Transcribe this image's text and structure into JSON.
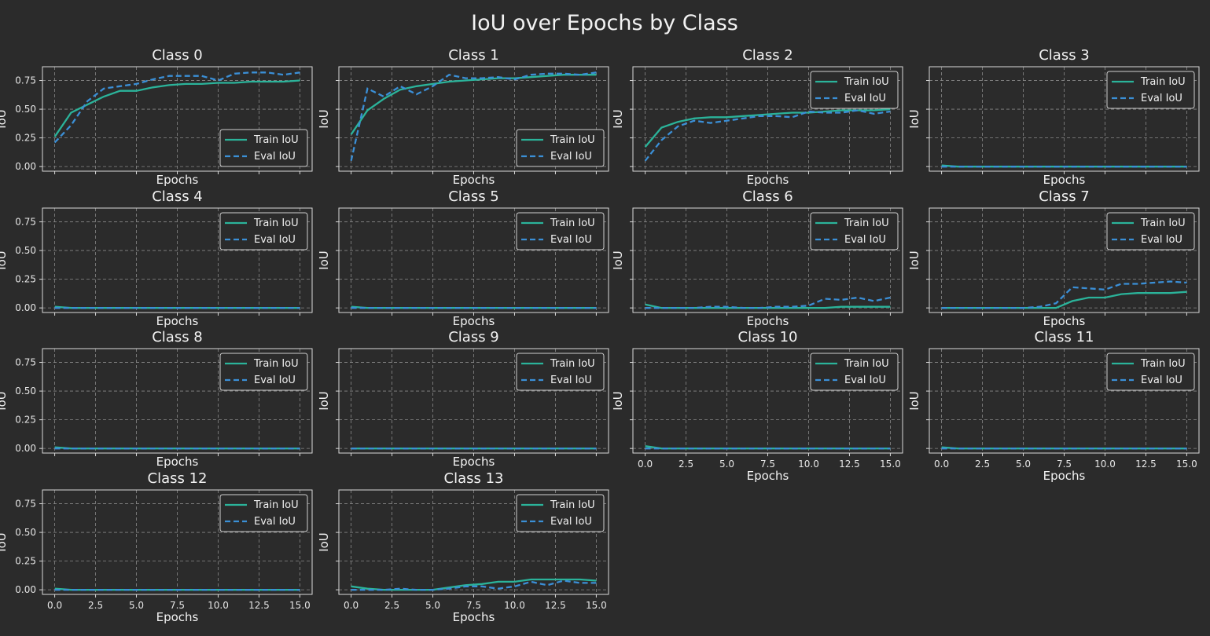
{
  "figure": {
    "title": "IoU over Epochs by Class",
    "background": "#2b2b2b",
    "train_color": "#2bb39a",
    "eval_color": "#3b8fd6",
    "axis_color": "#d9d9d9",
    "grid_color": "#8a8a8a"
  },
  "chart_data": {
    "type": "line",
    "xlabel": "Epochs",
    "ylabel": "IoU",
    "xlim": [
      -0.75,
      15.75
    ],
    "ylim": [
      -0.04,
      0.87
    ],
    "x_ticks": [
      0,
      2.5,
      5,
      7.5,
      10,
      12.5,
      15
    ],
    "x_tick_labels": [
      "0.0",
      "2.5",
      "5.0",
      "7.5",
      "10.0",
      "12.5",
      "15.0"
    ],
    "y_ticks": [
      0,
      0.25,
      0.5,
      0.75
    ],
    "y_tick_labels": [
      "0.00",
      "0.25",
      "0.50",
      "0.75"
    ],
    "grid": true,
    "x": [
      0,
      1,
      2,
      3,
      4,
      5,
      6,
      7,
      8,
      9,
      10,
      11,
      12,
      13,
      14,
      15
    ],
    "series_names": [
      "Train IoU",
      "Eval IoU"
    ],
    "panels": [
      {
        "title": "Class 0",
        "legend": "lower-right",
        "series": [
          {
            "name": "Train IoU",
            "values": [
              0.26,
              0.47,
              0.54,
              0.61,
              0.66,
              0.66,
              0.69,
              0.71,
              0.72,
              0.72,
              0.73,
              0.73,
              0.74,
              0.74,
              0.74,
              0.75
            ]
          },
          {
            "name": "Eval IoU",
            "values": [
              0.21,
              0.36,
              0.57,
              0.68,
              0.7,
              0.72,
              0.76,
              0.79,
              0.79,
              0.79,
              0.75,
              0.81,
              0.82,
              0.82,
              0.8,
              0.82
            ]
          }
        ]
      },
      {
        "title": "Class 1",
        "legend": "lower-right",
        "series": [
          {
            "name": "Train IoU",
            "values": [
              0.28,
              0.49,
              0.59,
              0.67,
              0.7,
              0.72,
              0.74,
              0.75,
              0.76,
              0.77,
              0.77,
              0.78,
              0.79,
              0.8,
              0.8,
              0.8
            ]
          },
          {
            "name": "Eval IoU",
            "values": [
              0.05,
              0.68,
              0.61,
              0.7,
              0.63,
              0.7,
              0.8,
              0.77,
              0.77,
              0.78,
              0.76,
              0.8,
              0.81,
              0.81,
              0.8,
              0.82
            ]
          }
        ]
      },
      {
        "title": "Class 2",
        "legend": "upper-right",
        "series": [
          {
            "name": "Train IoU",
            "values": [
              0.17,
              0.34,
              0.39,
              0.42,
              0.43,
              0.43,
              0.44,
              0.45,
              0.46,
              0.47,
              0.47,
              0.48,
              0.49,
              0.49,
              0.49,
              0.5
            ]
          },
          {
            "name": "Eval IoU",
            "values": [
              0.05,
              0.23,
              0.35,
              0.4,
              0.38,
              0.4,
              0.42,
              0.44,
              0.44,
              0.43,
              0.48,
              0.47,
              0.47,
              0.49,
              0.46,
              0.48
            ]
          }
        ]
      },
      {
        "title": "Class 3",
        "legend": "upper-right",
        "series": [
          {
            "name": "Train IoU",
            "values": [
              0.01,
              0.0,
              0.0,
              0.0,
              0.0,
              0.0,
              0.0,
              0.0,
              0.0,
              0.0,
              0.0,
              0.0,
              0.0,
              0.0,
              0.0,
              0.0
            ]
          },
          {
            "name": "Eval IoU",
            "values": [
              0.0,
              0.0,
              0.0,
              0.0,
              0.0,
              0.0,
              0.0,
              0.0,
              0.0,
              0.0,
              0.0,
              0.0,
              0.0,
              0.0,
              0.0,
              0.0
            ]
          }
        ]
      },
      {
        "title": "Class 4",
        "legend": "upper-right",
        "series": [
          {
            "name": "Train IoU",
            "values": [
              0.01,
              0.0,
              0.0,
              0.0,
              0.0,
              0.0,
              0.0,
              0.0,
              0.0,
              0.0,
              0.0,
              0.0,
              0.0,
              0.0,
              0.0,
              0.0
            ]
          },
          {
            "name": "Eval IoU",
            "values": [
              0.0,
              0.0,
              0.0,
              0.0,
              0.0,
              0.0,
              0.0,
              0.0,
              0.0,
              0.0,
              0.0,
              0.0,
              0.0,
              0.0,
              0.0,
              0.0
            ]
          }
        ]
      },
      {
        "title": "Class 5",
        "legend": "upper-right",
        "series": [
          {
            "name": "Train IoU",
            "values": [
              0.01,
              0.0,
              0.0,
              0.0,
              0.0,
              0.0,
              0.0,
              0.0,
              0.0,
              0.0,
              0.0,
              0.0,
              0.0,
              0.0,
              0.0,
              0.0
            ]
          },
          {
            "name": "Eval IoU",
            "values": [
              0.0,
              0.0,
              0.0,
              0.0,
              0.0,
              0.0,
              0.0,
              0.0,
              0.0,
              0.0,
              0.0,
              0.0,
              0.0,
              0.0,
              0.0,
              0.0
            ]
          }
        ]
      },
      {
        "title": "Class 6",
        "legend": "upper-right",
        "series": [
          {
            "name": "Train IoU",
            "values": [
              0.03,
              0.0,
              0.0,
              0.0,
              0.0,
              0.0,
              0.0,
              0.0,
              0.0,
              0.0,
              0.0,
              0.0,
              0.01,
              0.01,
              0.01,
              0.01
            ]
          },
          {
            "name": "Eval IoU",
            "values": [
              0.0,
              0.0,
              0.0,
              0.0,
              0.01,
              0.01,
              0.0,
              0.0,
              0.01,
              0.01,
              0.02,
              0.08,
              0.07,
              0.09,
              0.06,
              0.09
            ]
          }
        ]
      },
      {
        "title": "Class 7",
        "legend": "upper-right",
        "series": [
          {
            "name": "Train IoU",
            "values": [
              0.0,
              0.0,
              0.0,
              0.0,
              0.0,
              0.0,
              0.0,
              0.0,
              0.06,
              0.09,
              0.09,
              0.12,
              0.13,
              0.13,
              0.13,
              0.14
            ]
          },
          {
            "name": "Eval IoU",
            "values": [
              0.0,
              0.0,
              0.0,
              0.0,
              0.0,
              0.0,
              0.01,
              0.04,
              0.18,
              0.17,
              0.16,
              0.21,
              0.21,
              0.22,
              0.23,
              0.22
            ]
          }
        ]
      },
      {
        "title": "Class 8",
        "legend": "upper-right",
        "series": [
          {
            "name": "Train IoU",
            "values": [
              0.01,
              0.0,
              0.0,
              0.0,
              0.0,
              0.0,
              0.0,
              0.0,
              0.0,
              0.0,
              0.0,
              0.0,
              0.0,
              0.0,
              0.0,
              0.0
            ]
          },
          {
            "name": "Eval IoU",
            "values": [
              0.0,
              0.0,
              0.0,
              0.0,
              0.0,
              0.0,
              0.0,
              0.0,
              0.0,
              0.0,
              0.0,
              0.0,
              0.0,
              0.0,
              0.0,
              0.0
            ]
          }
        ]
      },
      {
        "title": "Class 9",
        "legend": "upper-right",
        "series": [
          {
            "name": "Train IoU",
            "values": [
              0.0,
              0.0,
              0.0,
              0.0,
              0.0,
              0.0,
              0.0,
              0.0,
              0.0,
              0.0,
              0.0,
              0.0,
              0.0,
              0.0,
              0.0,
              0.0
            ]
          },
          {
            "name": "Eval IoU",
            "values": [
              0.0,
              0.0,
              0.0,
              0.0,
              0.0,
              0.0,
              0.0,
              0.0,
              0.0,
              0.0,
              0.0,
              0.0,
              0.0,
              0.0,
              0.0,
              0.0
            ]
          }
        ]
      },
      {
        "title": "Class 10",
        "legend": "upper-right",
        "series": [
          {
            "name": "Train IoU",
            "values": [
              0.02,
              0.0,
              0.0,
              0.0,
              0.0,
              0.0,
              0.0,
              0.0,
              0.0,
              0.0,
              0.0,
              0.0,
              0.0,
              0.0,
              0.0,
              0.0
            ]
          },
          {
            "name": "Eval IoU",
            "values": [
              0.0,
              0.0,
              0.0,
              0.0,
              0.0,
              0.0,
              0.0,
              0.0,
              0.0,
              0.0,
              0.0,
              0.0,
              0.0,
              0.0,
              0.0,
              0.0
            ]
          }
        ]
      },
      {
        "title": "Class 11",
        "legend": "upper-right",
        "series": [
          {
            "name": "Train IoU",
            "values": [
              0.01,
              0.0,
              0.0,
              0.0,
              0.0,
              0.0,
              0.0,
              0.0,
              0.0,
              0.0,
              0.0,
              0.0,
              0.0,
              0.0,
              0.0,
              0.0
            ]
          },
          {
            "name": "Eval IoU",
            "values": [
              0.0,
              0.0,
              0.0,
              0.0,
              0.0,
              0.0,
              0.0,
              0.0,
              0.0,
              0.0,
              0.0,
              0.0,
              0.0,
              0.0,
              0.0,
              0.0
            ]
          }
        ]
      },
      {
        "title": "Class 12",
        "legend": "upper-right",
        "series": [
          {
            "name": "Train IoU",
            "values": [
              0.01,
              0.0,
              0.0,
              0.0,
              0.0,
              0.0,
              0.0,
              0.0,
              0.0,
              0.0,
              0.0,
              0.0,
              0.0,
              0.0,
              0.0,
              0.0
            ]
          },
          {
            "name": "Eval IoU",
            "values": [
              0.0,
              0.0,
              0.0,
              0.0,
              0.0,
              0.0,
              0.0,
              0.0,
              0.0,
              0.0,
              0.0,
              0.0,
              0.0,
              0.0,
              0.0,
              0.0
            ]
          }
        ]
      },
      {
        "title": "Class 13",
        "legend": "upper-right",
        "series": [
          {
            "name": "Train IoU",
            "values": [
              0.03,
              0.01,
              0.0,
              0.0,
              0.0,
              0.0,
              0.02,
              0.04,
              0.05,
              0.07,
              0.07,
              0.09,
              0.09,
              0.09,
              0.09,
              0.08
            ]
          },
          {
            "name": "Eval IoU",
            "values": [
              0.0,
              0.0,
              0.0,
              0.01,
              0.0,
              0.0,
              0.01,
              0.03,
              0.03,
              0.01,
              0.03,
              0.07,
              0.04,
              0.08,
              0.06,
              0.06
            ]
          }
        ]
      }
    ]
  }
}
